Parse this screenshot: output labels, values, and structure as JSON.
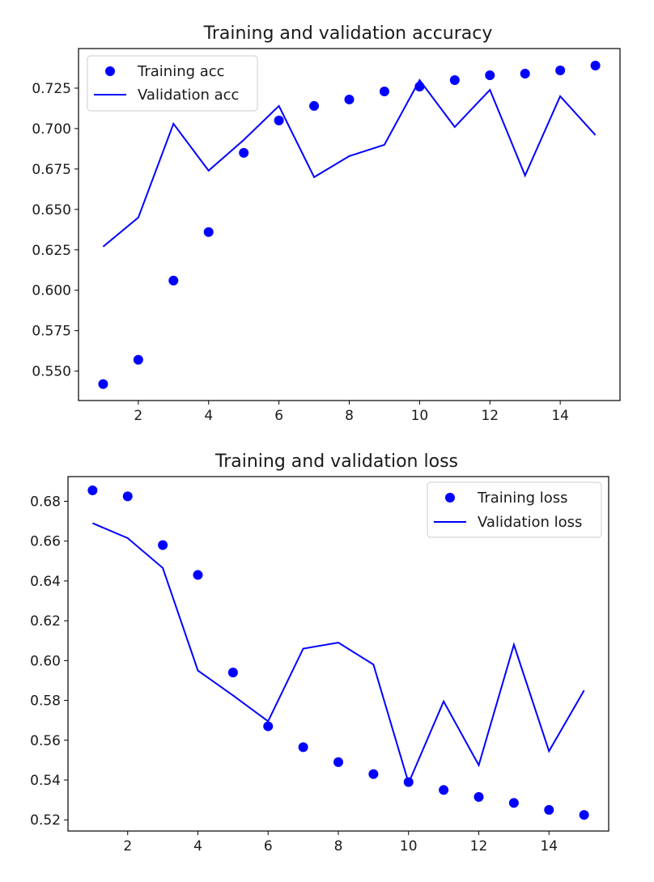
{
  "colors": {
    "series": "#0000ff",
    "axis": "#000000",
    "legend_border": "#cccccc",
    "background": "#ffffff"
  },
  "chart_data": [
    {
      "type": "line",
      "title": "Training and validation accuracy",
      "xlabel": "",
      "ylabel": "",
      "grid": false,
      "legend_position": "upper-left",
      "x": [
        1,
        2,
        3,
        4,
        5,
        6,
        7,
        8,
        9,
        10,
        11,
        12,
        13,
        14,
        15
      ],
      "xlim": [
        0.3,
        15.7
      ],
      "ylim": [
        0.5318,
        0.7495
      ],
      "xticks": [
        2,
        4,
        6,
        8,
        10,
        12,
        14
      ],
      "xtick_labels": [
        "2",
        "4",
        "6",
        "8",
        "10",
        "12",
        "14"
      ],
      "yticks": [
        0.55,
        0.575,
        0.6,
        0.625,
        0.65,
        0.675,
        0.7,
        0.725
      ],
      "ytick_labels": [
        "0.550",
        "0.575",
        "0.600",
        "0.625",
        "0.650",
        "0.675",
        "0.700",
        "0.725"
      ],
      "series": [
        {
          "name": "Training acc",
          "style": "dots",
          "values": [
            0.542,
            0.557,
            0.606,
            0.636,
            0.685,
            0.705,
            0.714,
            0.718,
            0.723,
            0.726,
            0.73,
            0.733,
            0.734,
            0.736,
            0.739
          ]
        },
        {
          "name": "Validation acc",
          "style": "line",
          "values": [
            0.627,
            0.645,
            0.703,
            0.674,
            0.693,
            0.714,
            0.67,
            0.683,
            0.69,
            0.73,
            0.701,
            0.724,
            0.671,
            0.72,
            0.696
          ]
        }
      ]
    },
    {
      "type": "line",
      "title": "Training and validation loss",
      "xlabel": "",
      "ylabel": "",
      "grid": false,
      "legend_position": "upper-right",
      "x": [
        1,
        2,
        3,
        4,
        5,
        6,
        7,
        8,
        9,
        10,
        11,
        12,
        13,
        14,
        15
      ],
      "xlim": [
        0.3,
        15.7
      ],
      "ylim": [
        0.5144,
        0.6924
      ],
      "xticks": [
        2,
        4,
        6,
        8,
        10,
        12,
        14
      ],
      "xtick_labels": [
        "2",
        "4",
        "6",
        "8",
        "10",
        "12",
        "14"
      ],
      "yticks": [
        0.52,
        0.54,
        0.56,
        0.58,
        0.6,
        0.62,
        0.64,
        0.66,
        0.68
      ],
      "ytick_labels": [
        "0.52",
        "0.54",
        "0.56",
        "0.58",
        "0.60",
        "0.62",
        "0.64",
        "0.66",
        "0.68"
      ],
      "series": [
        {
          "name": "Training loss",
          "style": "dots",
          "values": [
            0.6855,
            0.6825,
            0.658,
            0.643,
            0.594,
            0.567,
            0.5565,
            0.549,
            0.543,
            0.539,
            0.535,
            0.5315,
            0.5285,
            0.525,
            0.5225
          ]
        },
        {
          "name": "Validation loss",
          "style": "line",
          "values": [
            0.669,
            0.6615,
            0.6465,
            0.595,
            0.5825,
            0.5695,
            0.606,
            0.609,
            0.598,
            0.5385,
            0.5795,
            0.5475,
            0.608,
            0.5545,
            0.585
          ]
        }
      ]
    }
  ]
}
